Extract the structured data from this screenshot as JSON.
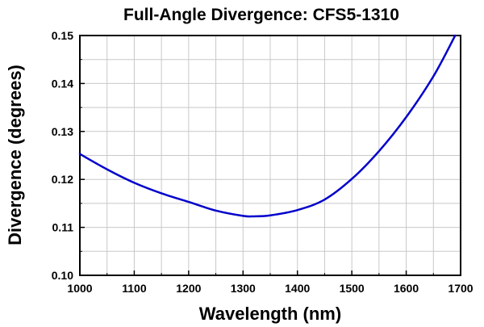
{
  "chart_data": {
    "type": "line",
    "title": "Full-Angle Divergence: CFS5-1310",
    "xlabel": "Wavelength (nm)",
    "ylabel": "Divergence (degrees)",
    "xlim": [
      1000,
      1700
    ],
    "ylim": [
      0.1,
      0.15
    ],
    "x_ticks": [
      "1000",
      "1100",
      "1200",
      "1300",
      "1400",
      "1500",
      "1600",
      "1700"
    ],
    "y_ticks": [
      "0.10",
      "0.11",
      "0.12",
      "0.13",
      "0.14",
      "0.15"
    ],
    "grid": true,
    "series": [
      {
        "color": "#0000cc",
        "x": [
          1000,
          1050,
          1100,
          1150,
          1200,
          1250,
          1300,
          1320,
          1350,
          1400,
          1450,
          1500,
          1550,
          1600,
          1650,
          1690
        ],
        "y": [
          0.1253,
          0.1221,
          0.1193,
          0.1171,
          0.1153,
          0.1135,
          0.1124,
          0.1123,
          0.1125,
          0.1136,
          0.1158,
          0.1201,
          0.1259,
          0.133,
          0.1415,
          0.15
        ]
      }
    ]
  }
}
